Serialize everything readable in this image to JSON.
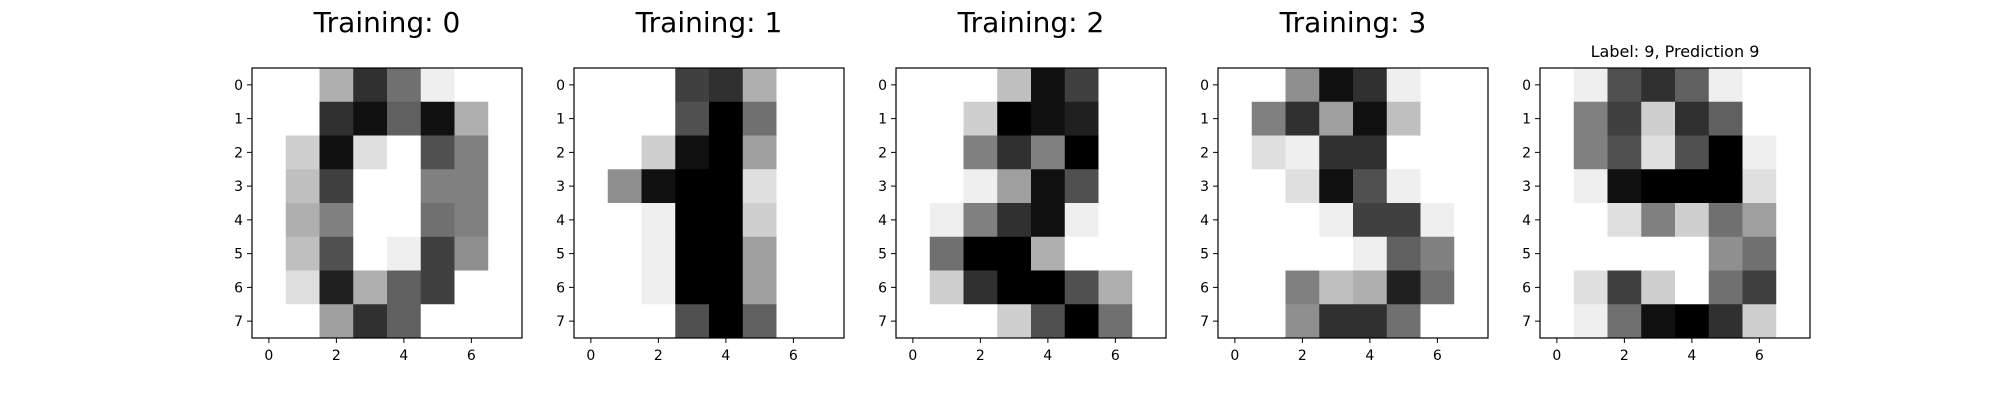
{
  "chart_data": [
    {
      "type": "heatmap",
      "title": "Training: 0",
      "colormap": "gray_r",
      "value_range": [
        0,
        16
      ],
      "xticks": [
        0,
        2,
        4,
        6
      ],
      "yticks": [
        0,
        1,
        2,
        3,
        4,
        5,
        6,
        7
      ],
      "xlim": [
        -0.5,
        7.5
      ],
      "ylim": [
        7.5,
        -0.5
      ],
      "pixels": [
        [
          0,
          0,
          5,
          13,
          9,
          1,
          0,
          0
        ],
        [
          0,
          0,
          13,
          15,
          10,
          15,
          5,
          0
        ],
        [
          0,
          3,
          15,
          2,
          0,
          11,
          8,
          0
        ],
        [
          0,
          4,
          12,
          0,
          0,
          8,
          8,
          0
        ],
        [
          0,
          5,
          8,
          0,
          0,
          9,
          8,
          0
        ],
        [
          0,
          4,
          11,
          0,
          1,
          12,
          7,
          0
        ],
        [
          0,
          2,
          14,
          5,
          10,
          12,
          0,
          0
        ],
        [
          0,
          0,
          6,
          13,
          10,
          0,
          0,
          0
        ]
      ]
    },
    {
      "type": "heatmap",
      "title": "Training: 1",
      "colormap": "gray_r",
      "value_range": [
        0,
        16
      ],
      "xticks": [
        0,
        2,
        4,
        6
      ],
      "yticks": [
        0,
        1,
        2,
        3,
        4,
        5,
        6,
        7
      ],
      "xlim": [
        -0.5,
        7.5
      ],
      "ylim": [
        7.5,
        -0.5
      ],
      "pixels": [
        [
          0,
          0,
          0,
          12,
          13,
          5,
          0,
          0
        ],
        [
          0,
          0,
          0,
          11,
          16,
          9,
          0,
          0
        ],
        [
          0,
          0,
          3,
          15,
          16,
          6,
          0,
          0
        ],
        [
          0,
          7,
          15,
          16,
          16,
          2,
          0,
          0
        ],
        [
          0,
          0,
          1,
          16,
          16,
          3,
          0,
          0
        ],
        [
          0,
          0,
          1,
          16,
          16,
          6,
          0,
          0
        ],
        [
          0,
          0,
          1,
          16,
          16,
          6,
          0,
          0
        ],
        [
          0,
          0,
          0,
          11,
          16,
          10,
          0,
          0
        ]
      ]
    },
    {
      "type": "heatmap",
      "title": "Training: 2",
      "colormap": "gray_r",
      "value_range": [
        0,
        16
      ],
      "xticks": [
        0,
        2,
        4,
        6
      ],
      "yticks": [
        0,
        1,
        2,
        3,
        4,
        5,
        6,
        7
      ],
      "xlim": [
        -0.5,
        7.5
      ],
      "ylim": [
        7.5,
        -0.5
      ],
      "pixels": [
        [
          0,
          0,
          0,
          4,
          15,
          12,
          0,
          0
        ],
        [
          0,
          0,
          3,
          16,
          15,
          14,
          0,
          0
        ],
        [
          0,
          0,
          8,
          13,
          8,
          16,
          0,
          0
        ],
        [
          0,
          0,
          1,
          6,
          15,
          11,
          0,
          0
        ],
        [
          0,
          1,
          8,
          13,
          15,
          1,
          0,
          0
        ],
        [
          0,
          9,
          16,
          16,
          5,
          0,
          0,
          0
        ],
        [
          0,
          3,
          13,
          16,
          16,
          11,
          5,
          0
        ],
        [
          0,
          0,
          0,
          3,
          11,
          16,
          9,
          0
        ]
      ]
    },
    {
      "type": "heatmap",
      "title": "Training: 3",
      "colormap": "gray_r",
      "value_range": [
        0,
        16
      ],
      "xticks": [
        0,
        2,
        4,
        6
      ],
      "yticks": [
        0,
        1,
        2,
        3,
        4,
        5,
        6,
        7
      ],
      "xlim": [
        -0.5,
        7.5
      ],
      "ylim": [
        7.5,
        -0.5
      ],
      "pixels": [
        [
          0,
          0,
          7,
          15,
          13,
          1,
          0,
          0
        ],
        [
          0,
          8,
          13,
          6,
          15,
          4,
          0,
          0
        ],
        [
          0,
          2,
          1,
          13,
          13,
          0,
          0,
          0
        ],
        [
          0,
          0,
          2,
          15,
          11,
          1,
          0,
          0
        ],
        [
          0,
          0,
          0,
          1,
          12,
          12,
          1,
          0
        ],
        [
          0,
          0,
          0,
          0,
          1,
          10,
          8,
          0
        ],
        [
          0,
          0,
          8,
          4,
          5,
          14,
          9,
          0
        ],
        [
          0,
          0,
          7,
          13,
          13,
          9,
          0,
          0
        ]
      ]
    },
    {
      "type": "heatmap",
      "title": "Label: 9, Prediction 9",
      "colormap": "gray_r",
      "value_range": [
        0,
        16
      ],
      "xticks": [
        0,
        2,
        4,
        6
      ],
      "yticks": [
        0,
        1,
        2,
        3,
        4,
        5,
        6,
        7
      ],
      "xlim": [
        -0.5,
        7.5
      ],
      "ylim": [
        7.5,
        -0.5
      ],
      "pixels": [
        [
          0,
          1,
          11,
          13,
          10,
          1,
          0,
          0
        ],
        [
          0,
          8,
          12,
          3,
          13,
          10,
          0,
          0
        ],
        [
          0,
          8,
          11,
          2,
          11,
          16,
          1,
          0
        ],
        [
          0,
          1,
          15,
          16,
          16,
          16,
          2,
          0
        ],
        [
          0,
          0,
          2,
          8,
          3,
          9,
          6,
          0
        ],
        [
          0,
          0,
          0,
          0,
          0,
          7,
          9,
          0
        ],
        [
          0,
          2,
          12,
          3,
          0,
          9,
          12,
          0
        ],
        [
          0,
          1,
          9,
          15,
          16,
          13,
          3,
          0
        ]
      ]
    }
  ]
}
